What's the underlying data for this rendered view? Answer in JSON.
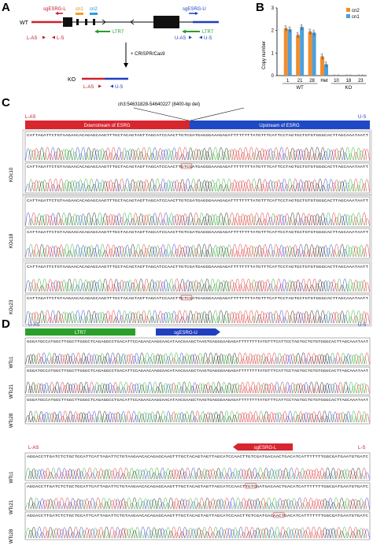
{
  "panelA": {
    "letter": "A",
    "wt_label": "WT",
    "ko_label": "KO",
    "sgesrg_l": "sgESRG-L",
    "sgesrg_u": "sgESRG-U",
    "cn1": "cn1",
    "cn2": "cn2",
    "ltr7": "LTR7",
    "l_as": "L-AS",
    "l_s": "L-S",
    "u_as": "U-AS",
    "u_s": "U-S",
    "crispr": "+ CRISPR/Cas9"
  },
  "panelB": {
    "letter": "B"
  },
  "chart_data": {
    "type": "bar",
    "categories": [
      "1",
      "21",
      "28",
      "Het",
      "10",
      "18",
      "23"
    ],
    "groups": [
      {
        "label": "WT",
        "categories": [
          "1",
          "21",
          "28"
        ]
      },
      {
        "label": "KO",
        "categories": [
          "10",
          "18",
          "23"
        ]
      }
    ],
    "series": [
      {
        "name": "cn2",
        "color": "#f28e2b",
        "values": [
          2.1,
          1.8,
          1.95,
          0.85,
          0.0,
          0.0,
          0.0
        ]
      },
      {
        "name": "cn1",
        "color": "#4e9fdc",
        "values": [
          2.05,
          2.15,
          1.9,
          0.5,
          0.0,
          0.0,
          0.0
        ]
      }
    ],
    "ylabel": "Copy number",
    "ylim": [
      0,
      3
    ],
    "yticks": [
      "0",
      "1",
      "2",
      "3"
    ],
    "legend": "top-right"
  },
  "panelC": {
    "letter": "C",
    "deletion_label": "ch3:54631828-54640227 (8400-bp del)",
    "l_as": "L-AS",
    "u_s": "U-S",
    "downstream": "Downstream of ESRG",
    "upstream": "Upstream of ESRG",
    "seq": "CATTAGATTCTGTAAGAACACAGAGCAAGTTTGCTACAGTAGTTAGCATCCAACTTGTCGATGAGGGAAAGAGATTTTTTTTATGTTTCATTCCTAGTGCTGTGTGGGCACTTAGCAAATAATT",
    "clones": [
      "KOc10",
      "KOc18",
      "KOc23"
    ]
  },
  "panelD": {
    "letter": "D",
    "u_as": "U-AS",
    "u_s": "U-S",
    "ltr7": "LTR7",
    "sgesrg_u": "sgESRG-U",
    "seq_top": "GGGATGCCATGGCTTGGCTTGGGCTCAGAGGCCTGACATTCCAGAACAAGGAACATAACGAAGCTAAGTGAGGGAAGAGATTTTTTTTATGTTTCATTCCTAGTGCTGTGTGGGCACTTAGCAAATAAT",
    "l_as": "L-AS",
    "l_s": "L-S",
    "sgesrg_l": "sgESRG-L",
    "seq_bottom": "AGGACCTTGATCTCTGCTGCATTCATTAGATTCTGTAAGAACACAGAGCAAGTTTGCTACAGTAGTTAGCATCCAACTTGTCGATGACAACTGACATCATTTTTTTGGCGATGAATGTGATC",
    "clones": [
      "WTc1",
      "WTc21",
      "WTc28"
    ]
  }
}
